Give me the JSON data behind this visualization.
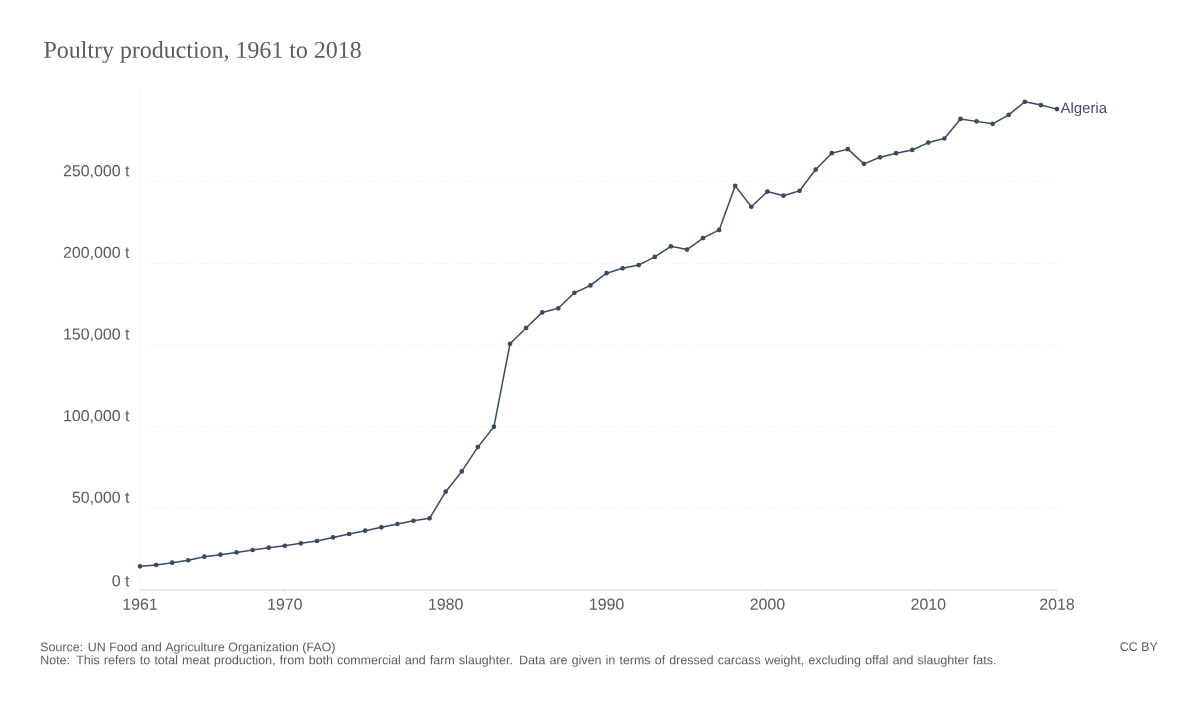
{
  "chart_data": {
    "type": "line",
    "title": "Poultry production, 1961 to 2018",
    "x": [
      1961,
      1962,
      1963,
      1964,
      1965,
      1966,
      1967,
      1968,
      1969,
      1970,
      1971,
      1972,
      1973,
      1974,
      1975,
      1976,
      1977,
      1978,
      1979,
      1980,
      1981,
      1982,
      1983,
      1984,
      1985,
      1986,
      1987,
      1988,
      1989,
      1990,
      1991,
      1992,
      1993,
      1994,
      1995,
      1996,
      1997,
      1998,
      1999,
      2000,
      2001,
      2002,
      2003,
      2004,
      2005,
      2006,
      2007,
      2008,
      2009,
      2010,
      2011,
      2012,
      2013,
      2014,
      2015,
      2016,
      2017,
      2018
    ],
    "series": [
      {
        "name": "Algeria",
        "color": "#3c4a5e",
        "values": [
          14500,
          15300,
          16700,
          18200,
          20400,
          21600,
          23000,
          24500,
          25900,
          27100,
          28600,
          30000,
          32200,
          34300,
          36300,
          38400,
          40400,
          42400,
          43900,
          60200,
          72600,
          87500,
          100000,
          150800,
          160500,
          170000,
          172500,
          182000,
          186500,
          194000,
          197000,
          199000,
          204000,
          210500,
          208500,
          215500,
          220500,
          247500,
          234700,
          244000,
          241500,
          244500,
          257500,
          267500,
          270000,
          261000,
          265000,
          267500,
          269500,
          274000,
          276500,
          288500,
          287000,
          285500,
          291000,
          299000,
          297000,
          294500
        ]
      }
    ],
    "xlim": [
      1961,
      2018
    ],
    "ylim": [
      0,
      305000
    ],
    "xticks": [
      1961,
      1970,
      1980,
      1990,
      2000,
      2010,
      2018
    ],
    "yticks": [
      {
        "value": 0,
        "label": "0 t"
      },
      {
        "value": 50000,
        "label": "50,000 t"
      },
      {
        "value": 100000,
        "label": "100,000 t"
      },
      {
        "value": 150000,
        "label": "150,000 t"
      },
      {
        "value": 200000,
        "label": "200,000 t"
      },
      {
        "value": 250000,
        "label": "250,000 t"
      }
    ],
    "grid": "y",
    "marker": "circle",
    "line_style": "solid",
    "annotations": [
      "Source: UN Food and Agriculture Organization (FAO)",
      "Note: This refers to total meat production, from both commercial and farm slaughter. Data are given in terms of dressed carcass weight, excluding offal and slaughter fats.",
      "CC BY"
    ]
  }
}
